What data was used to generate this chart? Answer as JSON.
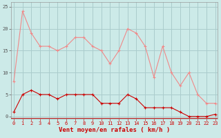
{
  "hours": [
    0,
    1,
    2,
    3,
    4,
    5,
    6,
    7,
    8,
    9,
    10,
    11,
    12,
    13,
    14,
    15,
    16,
    17,
    18,
    19,
    20,
    21,
    22,
    23
  ],
  "rafales": [
    8,
    24,
    19,
    16,
    16,
    15,
    16,
    18,
    18,
    16,
    15,
    12,
    15,
    20,
    19,
    16,
    9,
    16,
    10,
    7,
    10,
    5,
    3,
    3
  ],
  "moyen": [
    1,
    5,
    6,
    5,
    5,
    4,
    5,
    5,
    5,
    5,
    3,
    3,
    3,
    5,
    4,
    2,
    2,
    2,
    2,
    1,
    0,
    0,
    0,
    0.5
  ],
  "bg_color": "#cceae8",
  "grid_color": "#aacccc",
  "line_color_rafales": "#f08888",
  "line_color_moyen": "#cc0000",
  "xlabel": "Vent moyen/en rafales ( km/h )",
  "xlabel_color": "#cc0000",
  "yticks": [
    0,
    5,
    10,
    15,
    20,
    25
  ],
  "ylim": [
    -0.5,
    26
  ],
  "xlim": [
    -0.3,
    23.3
  ],
  "tick_fontsize": 5.0,
  "xlabel_fontsize": 6.5
}
